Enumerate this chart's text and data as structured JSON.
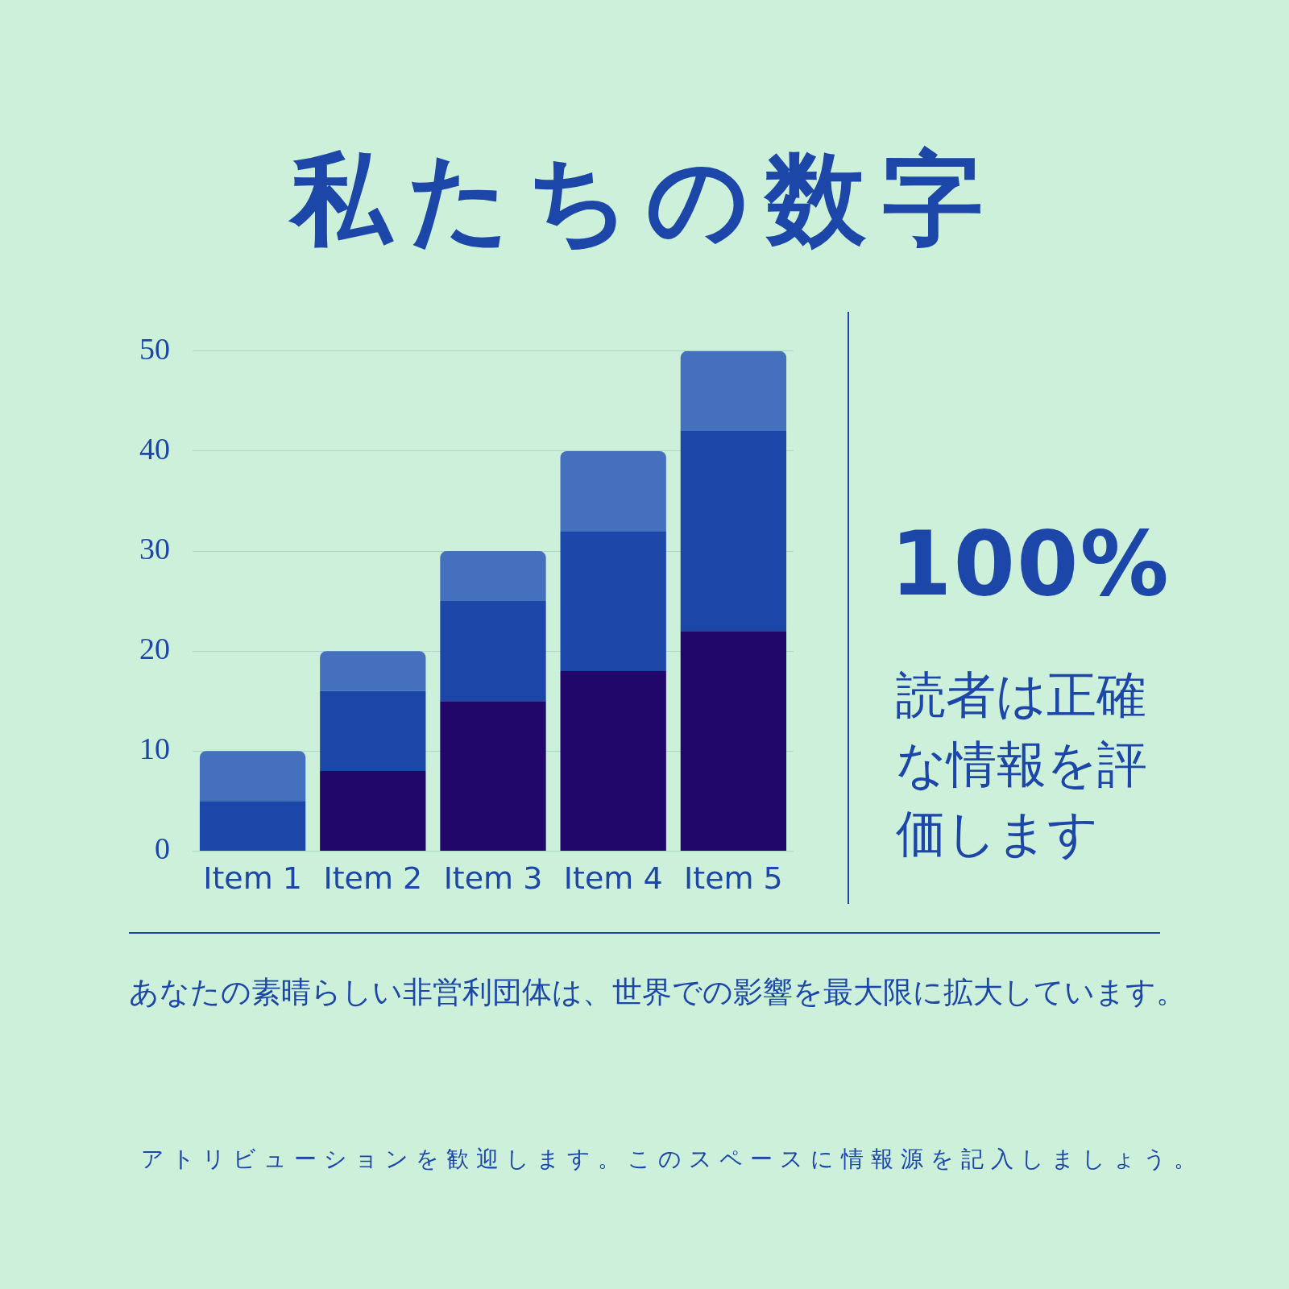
{
  "chart_data": {
    "type": "bar",
    "title": "私たちの数字",
    "categories": [
      "Item 1",
      "Item 2",
      "Item 3",
      "Item 4",
      "Item 5"
    ],
    "stacked": true,
    "series": [
      {
        "color": "#22076b",
        "values": [
          0,
          8,
          15,
          18,
          22
        ]
      },
      {
        "color": "#1c47a8",
        "values": [
          5,
          8,
          10,
          14,
          20
        ]
      },
      {
        "color": "#4470bd",
        "values": [
          5,
          4,
          5,
          8,
          8
        ]
      }
    ],
    "ylim": [
      0,
      50
    ],
    "yticks": [
      0,
      10,
      20,
      30,
      40,
      50
    ],
    "grid": "y",
    "legend": false,
    "annotations": [
      "100%",
      "読者は正確な情報を評価します",
      "あなたの素晴らしい非営利団体は、世界での影響を最大限に拡大しています。",
      "アトリビューションを歓迎します。このスペースに情報源を記入しましょう。"
    ]
  }
}
